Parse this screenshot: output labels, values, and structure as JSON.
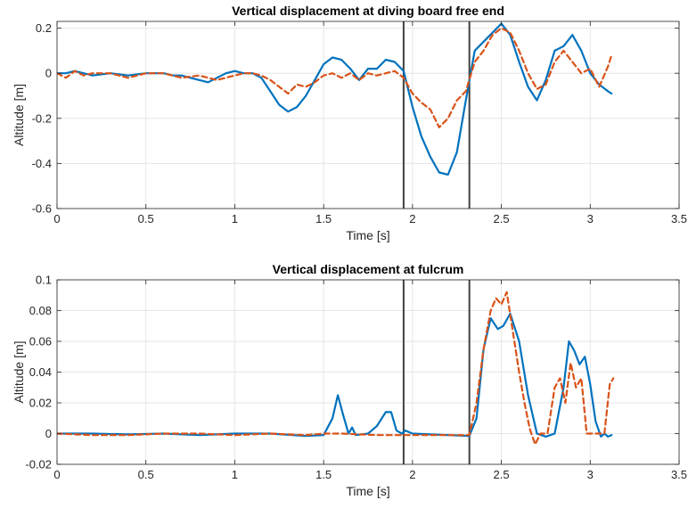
{
  "chart_data": [
    {
      "type": "line",
      "title": "Vertical displacement at diving board free end",
      "xlabel": "Time [s]",
      "ylabel": "Altitude [m]",
      "xlim": [
        0,
        3.5
      ],
      "ylim": [
        -0.6,
        0.23
      ],
      "xticks": [
        "0",
        "0.5",
        "1",
        "1.5",
        "2",
        "2.5",
        "3",
        "3.5"
      ],
      "yticks": [
        "-0.6",
        "-0.4",
        "-0.2",
        "0",
        "0.2"
      ],
      "xtick_values": [
        0,
        0.5,
        1,
        1.5,
        2,
        2.5,
        3,
        3.5
      ],
      "ytick_values": [
        -0.6,
        -0.4,
        -0.2,
        0,
        0.2
      ],
      "grid": true,
      "vlines": [
        1.95,
        2.32
      ],
      "series": [
        {
          "color": "#0072BD",
          "style": "solid",
          "x": [
            0,
            0.05,
            0.1,
            0.15,
            0.2,
            0.3,
            0.4,
            0.5,
            0.55,
            0.6,
            0.65,
            0.7,
            0.75,
            0.8,
            0.85,
            0.9,
            0.95,
            1.0,
            1.05,
            1.1,
            1.15,
            1.2,
            1.25,
            1.3,
            1.35,
            1.4,
            1.45,
            1.5,
            1.55,
            1.6,
            1.65,
            1.7,
            1.75,
            1.8,
            1.85,
            1.9,
            1.95,
            2.0,
            2.05,
            2.1,
            2.15,
            2.2,
            2.25,
            2.3,
            2.35,
            2.4,
            2.45,
            2.5,
            2.55,
            2.6,
            2.65,
            2.7,
            2.75,
            2.8,
            2.85,
            2.9,
            2.95,
            3.0,
            3.05,
            3.1,
            3.12
          ],
          "y": [
            0.0,
            0.0,
            0.01,
            0.0,
            -0.01,
            0.0,
            -0.01,
            0.0,
            0.0,
            0.0,
            -0.01,
            -0.01,
            -0.02,
            -0.03,
            -0.04,
            -0.02,
            0.0,
            0.01,
            0.0,
            0.0,
            -0.02,
            -0.08,
            -0.14,
            -0.17,
            -0.15,
            -0.1,
            -0.03,
            0.04,
            0.07,
            0.06,
            0.02,
            -0.03,
            0.02,
            0.02,
            0.06,
            0.05,
            0.01,
            -0.15,
            -0.28,
            -0.37,
            -0.44,
            -0.45,
            -0.35,
            -0.12,
            0.1,
            0.14,
            0.18,
            0.22,
            0.17,
            0.05,
            -0.06,
            -0.12,
            -0.03,
            0.1,
            0.12,
            0.17,
            0.1,
            0.0,
            -0.05,
            -0.08,
            -0.09
          ]
        },
        {
          "color": "#D95319",
          "style": "dashed",
          "x": [
            0,
            0.05,
            0.1,
            0.15,
            0.2,
            0.3,
            0.4,
            0.5,
            0.6,
            0.7,
            0.8,
            0.9,
            1.0,
            1.05,
            1.1,
            1.15,
            1.2,
            1.25,
            1.3,
            1.35,
            1.4,
            1.45,
            1.5,
            1.55,
            1.6,
            1.65,
            1.7,
            1.75,
            1.8,
            1.85,
            1.9,
            1.95,
            2.0,
            2.05,
            2.1,
            2.15,
            2.2,
            2.25,
            2.3,
            2.35,
            2.4,
            2.45,
            2.5,
            2.55,
            2.6,
            2.65,
            2.7,
            2.75,
            2.8,
            2.85,
            2.9,
            2.95,
            3.0,
            3.05,
            3.1,
            3.12
          ],
          "y": [
            0.0,
            -0.02,
            0.01,
            -0.01,
            0.0,
            0.0,
            -0.02,
            0.0,
            0.0,
            -0.02,
            -0.01,
            -0.03,
            -0.01,
            0.0,
            0.0,
            -0.01,
            -0.03,
            -0.06,
            -0.09,
            -0.05,
            -0.06,
            -0.04,
            -0.01,
            0.0,
            -0.02,
            0.0,
            -0.03,
            0.0,
            -0.01,
            0.0,
            0.01,
            -0.02,
            -0.09,
            -0.13,
            -0.16,
            -0.24,
            -0.2,
            -0.12,
            -0.08,
            0.05,
            0.1,
            0.17,
            0.2,
            0.18,
            0.1,
            0.0,
            -0.07,
            -0.05,
            0.05,
            0.1,
            0.05,
            0.0,
            0.02,
            -0.06,
            0.03,
            0.08
          ]
        }
      ]
    },
    {
      "type": "line",
      "title": "Vertical displacement at fulcrum",
      "xlabel": "Time [s]",
      "ylabel": "Altitude [m]",
      "xlim": [
        0,
        3.5
      ],
      "ylim": [
        -0.02,
        0.1
      ],
      "xticks": [
        "0",
        "0.5",
        "1",
        "1.5",
        "2",
        "2.5",
        "3",
        "3.5"
      ],
      "yticks": [
        "-0.02",
        "0",
        "0.02",
        "0.04",
        "0.06",
        "0.08",
        "0.1"
      ],
      "xtick_values": [
        0,
        0.5,
        1,
        1.5,
        2,
        2.5,
        3,
        3.5
      ],
      "ytick_values": [
        -0.02,
        0,
        0.02,
        0.04,
        0.06,
        0.08,
        0.1
      ],
      "grid": true,
      "vlines": [
        1.95,
        2.32
      ],
      "series": [
        {
          "color": "#0072BD",
          "style": "solid",
          "x": [
            0,
            0.2,
            0.4,
            0.6,
            0.8,
            1.0,
            1.2,
            1.4,
            1.5,
            1.55,
            1.58,
            1.61,
            1.64,
            1.66,
            1.68,
            1.75,
            1.8,
            1.85,
            1.88,
            1.91,
            1.94,
            1.96,
            2.0,
            2.2,
            2.32,
            2.36,
            2.4,
            2.44,
            2.48,
            2.51,
            2.55,
            2.6,
            2.65,
            2.7,
            2.75,
            2.8,
            2.85,
            2.88,
            2.91,
            2.94,
            2.97,
            3.0,
            3.03,
            3.06,
            3.08,
            3.1,
            3.12
          ],
          "y": [
            0.0,
            0.0,
            -0.0005,
            0.0,
            -0.001,
            0.0,
            0.0,
            -0.0015,
            -0.001,
            0.01,
            0.025,
            0.012,
            0.0,
            0.004,
            -0.001,
            0.0,
            0.005,
            0.014,
            0.014,
            0.002,
            0.0,
            0.002,
            0.0,
            -0.001,
            -0.0015,
            0.01,
            0.055,
            0.075,
            0.068,
            0.07,
            0.078,
            0.06,
            0.025,
            0.0,
            -0.002,
            0.0,
            0.03,
            0.06,
            0.054,
            0.045,
            0.05,
            0.032,
            0.008,
            -0.002,
            0.0,
            -0.002,
            -0.001
          ]
        },
        {
          "color": "#D95319",
          "style": "dashed",
          "x": [
            0,
            0.2,
            0.4,
            0.6,
            0.8,
            1.0,
            1.2,
            1.4,
            1.5,
            1.6,
            1.8,
            2.0,
            2.2,
            2.32,
            2.36,
            2.4,
            2.44,
            2.47,
            2.5,
            2.53,
            2.56,
            2.6,
            2.63,
            2.66,
            2.69,
            2.72,
            2.76,
            2.8,
            2.83,
            2.86,
            2.89,
            2.92,
            2.95,
            2.98,
            3.02,
            3.05,
            3.08,
            3.11,
            3.13
          ],
          "y": [
            0.0,
            -0.001,
            -0.001,
            0.0,
            0.0,
            -0.001,
            0.0,
            -0.001,
            0.0,
            0.0,
            -0.001,
            -0.001,
            -0.001,
            -0.001,
            0.02,
            0.055,
            0.08,
            0.088,
            0.084,
            0.092,
            0.07,
            0.04,
            0.02,
            0.003,
            -0.007,
            0.0,
            0.0,
            0.03,
            0.036,
            0.02,
            0.046,
            0.03,
            0.036,
            0.0,
            0.0,
            0.0,
            0.0,
            0.032,
            0.036
          ]
        }
      ]
    }
  ]
}
